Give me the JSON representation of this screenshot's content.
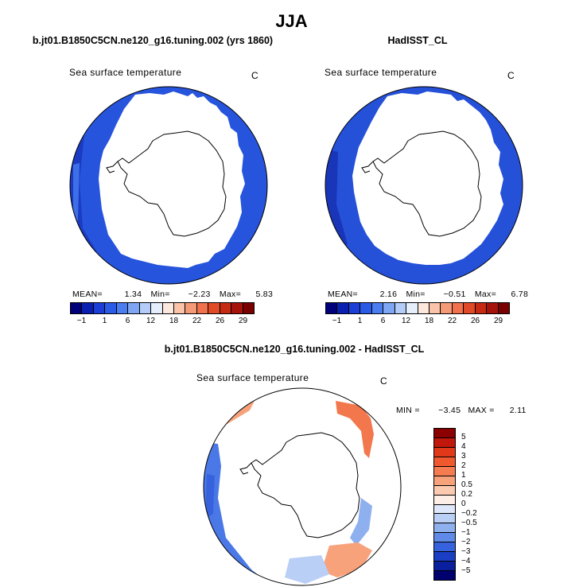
{
  "page_title": "JJA",
  "panels": [
    {
      "title": "b.jt01.B1850C5CN.ne120_g16.tuning.002 (yrs 1860)",
      "variable": "Sea surface temperature",
      "units": "C",
      "stats": {
        "mean_label": "MEAN=",
        "mean": "1.34",
        "min_label": "Min=",
        "min": "−2.23",
        "max_label": "Max=",
        "max": "5.83"
      }
    },
    {
      "title": "HadISST_CL",
      "variable": "Sea surface temperature",
      "units": "C",
      "stats": {
        "mean_label": "MEAN=",
        "mean": "2.16",
        "min_label": "Min=",
        "min": "−0.51",
        "max_label": "Max=",
        "max": "6.78"
      }
    },
    {
      "title": "b.jt01.B1850C5CN.ne120_g16.tuning.002 - HadISST_CL",
      "variable": "Sea surface temperature",
      "units": "C",
      "stats": {
        "min_label": "MIN =",
        "min": "−3.45",
        "max_label": "MAX =",
        "max": "2.11"
      }
    }
  ],
  "chart_data": [
    {
      "type": "heatmap",
      "projection": "south-polar stereographic",
      "title": "b.jt01.B1850C5CN.ne120_g16.tuning.002 (yrs 1860)",
      "variable": "Sea surface temperature",
      "units": "C",
      "mean": 1.34,
      "min": -2.23,
      "max": 5.83,
      "colorbar_levels": [
        -1,
        1,
        6,
        12,
        18,
        22,
        26,
        29
      ],
      "colorbar_tick_labels": [
        "−1",
        "1",
        "6",
        "12",
        "18",
        "22",
        "26",
        "29"
      ],
      "colorbar_position": "bottom"
    },
    {
      "type": "heatmap",
      "projection": "south-polar stereographic",
      "title": "HadISST_CL",
      "variable": "Sea surface temperature",
      "units": "C",
      "mean": 2.16,
      "min": -0.51,
      "max": 6.78,
      "colorbar_levels": [
        -1,
        1,
        6,
        12,
        18,
        22,
        26,
        29
      ],
      "colorbar_tick_labels": [
        "−1",
        "1",
        "6",
        "12",
        "18",
        "22",
        "26",
        "29"
      ],
      "colorbar_position": "bottom"
    },
    {
      "type": "heatmap",
      "projection": "south-polar stereographic",
      "title": "b.jt01.B1850C5CN.ne120_g16.tuning.002 - HadISST_CL",
      "variable": "Sea surface temperature",
      "units": "C",
      "min": -3.45,
      "max": 2.11,
      "colorbar_levels": [
        5,
        4,
        3,
        2,
        1,
        0.5,
        0.2,
        0,
        -0.2,
        -0.5,
        -1,
        -2,
        -3,
        -4,
        -5
      ],
      "colorbar_tick_labels": [
        "5",
        "4",
        "3",
        "2",
        "1",
        "0.5",
        "0.2",
        "0",
        "−0.2",
        "−0.5",
        "−1",
        "−2",
        "−3",
        "−4",
        "−5"
      ],
      "colorbar_position": "right"
    }
  ],
  "colors": {
    "temp_scale": [
      "#00007a",
      "#0a1fb0",
      "#1b3fd6",
      "#2a5be6",
      "#4a7ef0",
      "#7ea6f5",
      "#b4cdf8",
      "#e6eefc",
      "#fde8de",
      "#f9c4a9",
      "#f59a77",
      "#f0714b",
      "#e04a26",
      "#c72a13",
      "#a6130b",
      "#7a0000"
    ],
    "diff_scale": [
      "#8b0000",
      "#c0180c",
      "#e2381a",
      "#f0582e",
      "#f47c50",
      "#f8a27c",
      "#fbcab0",
      "#fdeee6",
      "#dfe8fa",
      "#b9cff5",
      "#8fb0ef",
      "#5f8ae8",
      "#3663dd",
      "#1b3fc4",
      "#0a1f9e",
      "#00006e"
    ],
    "ocean_model": "#2654dc",
    "ocean_model_dark": "#1a3bc2",
    "ocean_obs": "#2550d8",
    "ocean_obs_dark": "#1935b8",
    "diff_pos": "#f2774c",
    "diff_neg": "#4a78e6"
  }
}
